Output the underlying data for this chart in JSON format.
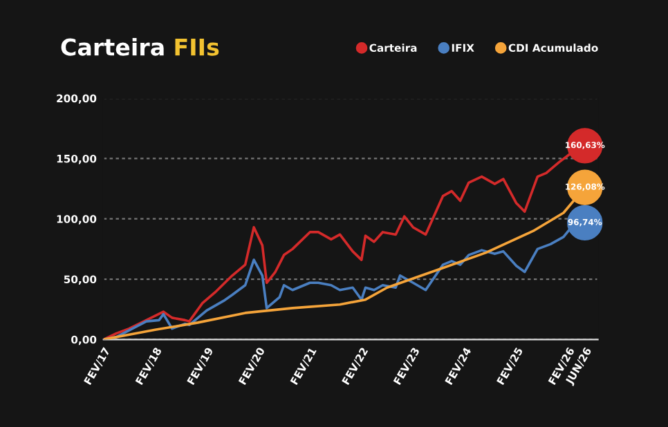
{
  "chart_data": {
    "type": "line",
    "title": "Carteira FIIs",
    "series": [
      {
        "name": "Carteira",
        "color": "#d42a2a",
        "x": [
          "2017-02",
          "2017-05",
          "2017-08",
          "2017-12",
          "2018-04",
          "2018-06",
          "2018-09",
          "2018-10",
          "2019-01",
          "2019-04",
          "2019-08",
          "2019-11",
          "2020-01",
          "2020-03",
          "2020-04",
          "2020-06",
          "2020-08",
          "2020-10",
          "2021-02",
          "2021-04",
          "2021-07",
          "2021-09",
          "2021-12",
          "2022-02",
          "2022-03",
          "2022-05",
          "2022-07",
          "2022-10",
          "2022-12",
          "2023-02",
          "2023-05",
          "2023-09",
          "2023-11",
          "2024-01",
          "2024-03",
          "2024-06",
          "2024-09",
          "2024-11",
          "2025-02",
          "2025-04",
          "2025-07",
          "2025-09",
          "2025-12",
          "2026-03",
          "2026-06"
        ],
        "values": [
          0,
          5,
          9,
          16,
          23,
          18,
          16,
          15,
          30,
          39,
          53,
          62,
          93,
          78,
          47,
          56,
          70,
          75,
          89,
          89,
          83,
          87,
          73,
          66,
          86,
          81,
          89,
          87,
          102,
          93,
          87,
          119,
          123,
          115,
          130,
          135,
          129,
          133,
          113,
          106,
          135,
          138,
          147,
          155,
          160.63
        ]
      },
      {
        "name": "IFIX",
        "color": "#4a7fc1",
        "x": [
          "2017-02",
          "2017-05",
          "2017-12",
          "2018-03",
          "2018-04",
          "2018-06",
          "2018-09",
          "2018-10",
          "2019-02",
          "2019-06",
          "2019-08",
          "2019-11",
          "2020-01",
          "2020-03",
          "2020-04",
          "2020-07",
          "2020-08",
          "2020-10",
          "2021-02",
          "2021-04",
          "2021-07",
          "2021-09",
          "2021-12",
          "2022-02",
          "2022-03",
          "2022-05",
          "2022-07",
          "2022-10",
          "2022-11",
          "2023-02",
          "2023-05",
          "2023-09",
          "2023-11",
          "2024-01",
          "2024-03",
          "2024-06",
          "2024-09",
          "2024-11",
          "2025-02",
          "2025-04",
          "2025-07",
          "2025-10",
          "2026-01",
          "2026-04",
          "2026-06"
        ],
        "values": [
          0,
          2,
          15,
          16,
          21,
          9,
          13,
          12,
          24,
          32,
          37,
          45,
          66,
          53,
          26,
          35,
          45,
          41,
          47,
          47,
          45,
          41,
          43,
          33,
          43,
          41,
          45,
          43,
          53,
          47,
          41,
          62,
          65,
          62,
          70,
          74,
          71,
          73,
          61,
          56,
          75,
          79,
          85,
          98,
          96.74
        ]
      },
      {
        "name": "CDI Acumulado",
        "color": "#f5a43a",
        "x": [
          "2017-02",
          "2018-02",
          "2018-12",
          "2019-11",
          "2020-10",
          "2021-09",
          "2022-03",
          "2022-08",
          "2023-08",
          "2024-07",
          "2025-06",
          "2026-01",
          "2026-06"
        ],
        "values": [
          0,
          8,
          14,
          22,
          26,
          29,
          33,
          43,
          58,
          72,
          90,
          105,
          126.08
        ]
      }
    ],
    "xlim": [
      "2017-02",
      "2026-09"
    ],
    "xticks": [
      {
        "value": "2017-02",
        "label": "FEV/17"
      },
      {
        "value": "2018-02",
        "label": "FEV/18"
      },
      {
        "value": "2019-02",
        "label": "FEV/19"
      },
      {
        "value": "2020-02",
        "label": "FEV/20"
      },
      {
        "value": "2021-02",
        "label": "FEV/21"
      },
      {
        "value": "2022-02",
        "label": "FEV/22"
      },
      {
        "value": "2023-02",
        "label": "FEV/23"
      },
      {
        "value": "2024-02",
        "label": "FEV/24"
      },
      {
        "value": "2025-02",
        "label": "FEV/25"
      },
      {
        "value": "2026-02",
        "label": "FEV/26"
      },
      {
        "value": "2026-06",
        "label": "JUN/26"
      }
    ],
    "ylim": [
      0,
      200
    ],
    "yticks": [
      {
        "value": 0,
        "label": "0,00"
      },
      {
        "value": 50,
        "label": "50,00"
      },
      {
        "value": 100,
        "label": "100,00"
      },
      {
        "value": 150,
        "label": "150,00"
      },
      {
        "value": 200,
        "label": "200,00"
      }
    ],
    "grid": "y",
    "legend": "top right",
    "annotations": [
      {
        "text": "160,63%",
        "x": "2026-06",
        "y": 160.63
      },
      {
        "text": "126,08%",
        "x": "2026-06",
        "y": 126.08
      },
      {
        "text": "96,74%",
        "x": "2026-06",
        "y": 96.74
      }
    ]
  }
}
